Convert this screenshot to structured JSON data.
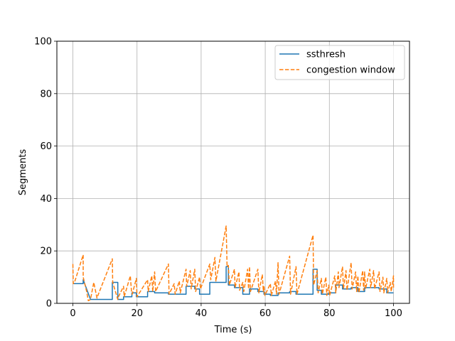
{
  "chart_data": {
    "type": "line",
    "xlabel": "Time (s)",
    "ylabel": "Segments",
    "xlim": [
      -5,
      105
    ],
    "ylim": [
      0,
      100
    ],
    "xticks": [
      0,
      20,
      40,
      60,
      80,
      100
    ],
    "yticks": [
      0,
      20,
      40,
      60,
      80,
      100
    ],
    "grid": true,
    "legend_position": "top-right",
    "series": [
      {
        "name": "ssthresh",
        "color": "#1f77b4",
        "style": "solid",
        "x": [
          0,
          3.2,
          3.2,
          5.5,
          12.3,
          12.3,
          14.0,
          14.0,
          15.8,
          15.8,
          18.4,
          18.4,
          19.8,
          19.8,
          23.3,
          23.3,
          25.5,
          25.5,
          29.8,
          29.8,
          35.3,
          35.3,
          38.0,
          38.0,
          39.5,
          39.5,
          42.7,
          42.7,
          47.8,
          47.8,
          48.5,
          48.5,
          50.4,
          50.4,
          53.0,
          53.0,
          55.1,
          55.1,
          57.7,
          57.7,
          59.6,
          59.6,
          61.6,
          61.6,
          64.0,
          64.0,
          67.6,
          67.6,
          69.6,
          69.6,
          74.9,
          74.9,
          76.2,
          76.2,
          77.5,
          77.5,
          79.8,
          79.8,
          82.0,
          82.0,
          84.1,
          84.1,
          86.8,
          86.8,
          88.9,
          88.9,
          91.0,
          91.0,
          95.5,
          95.5,
          97.9,
          97.9,
          100
        ],
        "y": [
          7.5,
          7.5,
          9.0,
          1.5,
          1.5,
          8.0,
          8.0,
          1.5,
          1.5,
          2.5,
          2.5,
          4.0,
          4.0,
          2.5,
          2.5,
          4.5,
          4.5,
          4.0,
          4.0,
          3.5,
          3.5,
          6.5,
          6.5,
          5.5,
          5.5,
          3.5,
          3.5,
          8.0,
          8.0,
          14.0,
          14.0,
          7.0,
          7.0,
          6.0,
          6.0,
          3.5,
          3.5,
          5.5,
          5.5,
          4.5,
          4.5,
          3.5,
          3.5,
          3.0,
          3.0,
          4.0,
          4.0,
          4.5,
          4.5,
          3.5,
          3.5,
          13.0,
          13.0,
          5.0,
          5.0,
          3.5,
          3.5,
          4.0,
          4.0,
          7.0,
          7.0,
          5.5,
          5.5,
          6.0,
          6.0,
          4.5,
          4.5,
          6.0,
          6.0,
          5.5,
          5.5,
          4.0,
          4.0
        ]
      },
      {
        "name": "congestion window",
        "color": "#ff7f0e",
        "style": "dashed",
        "x": [
          0,
          0.1,
          0.5,
          3.2,
          3.2,
          4.3,
          4.8,
          5.5,
          6.5,
          7.5,
          7.8,
          12.3,
          12.4,
          14.0,
          14.2,
          15.8,
          16.0,
          17.9,
          18.3,
          18.5,
          19.8,
          20.0,
          23.3,
          23.5,
          24.6,
          24.9,
          25.5,
          25.8,
          29.8,
          30.0,
          31.6,
          31.9,
          33.2,
          33.5,
          35.3,
          35.5,
          36.6,
          36.9,
          38.0,
          38.3,
          39.5,
          39.8,
          42.7,
          43.0,
          44.3,
          44.6,
          47.8,
          48.1,
          48.5,
          48.8,
          50.4,
          50.6,
          51.8,
          52.0,
          53.0,
          53.3,
          54.5,
          54.8,
          55.1,
          55.4,
          57.7,
          58.0,
          59.1,
          59.4,
          59.6,
          59.9,
          61.6,
          61.9,
          63.2,
          63.5,
          64.0,
          64.3,
          67.6,
          67.9,
          69.6,
          69.9,
          74.9,
          75.1,
          76.2,
          76.5,
          77.5,
          77.8,
          78.9,
          79.2,
          79.8,
          80.1,
          81.7,
          82.0,
          82.8,
          83.0,
          84.1,
          84.4,
          85.2,
          85.5,
          86.8,
          87.1,
          88.2,
          88.5,
          88.9,
          89.2,
          90.4,
          90.7,
          91.0,
          91.3,
          92.6,
          92.9,
          93.8,
          94.1,
          95.5,
          95.8,
          96.7,
          97.0,
          97.9,
          98.2,
          99.0,
          99.3,
          100,
          100
        ],
        "y": [
          15.0,
          7.5,
          8.0,
          18.5,
          10.0,
          4.5,
          1.0,
          1.5,
          8.0,
          2.0,
          3.0,
          17.0,
          8.0,
          1.5,
          2.5,
          6.5,
          2.5,
          10.5,
          4.0,
          3.5,
          9.5,
          2.5,
          9.0,
          4.5,
          10.5,
          4.5,
          12.0,
          4.5,
          15.0,
          3.5,
          7.5,
          3.5,
          8.5,
          4.0,
          13.0,
          6.5,
          12.5,
          5.5,
          13.0,
          4.5,
          10.0,
          5.5,
          15.0,
          9.0,
          17.5,
          8.5,
          29.5,
          14.0,
          14.5,
          7.0,
          13.0,
          6.0,
          12.0,
          5.0,
          8.0,
          4.5,
          13.0,
          5.5,
          14.0,
          4.5,
          13.0,
          4.0,
          11.0,
          4.5,
          6.5,
          3.0,
          7.5,
          3.0,
          8.5,
          3.5,
          15.5,
          3.5,
          18.0,
          3.5,
          14.0,
          3.5,
          26.0,
          7.0,
          12.5,
          4.0,
          9.5,
          3.5,
          10.0,
          3.0,
          7.0,
          3.0,
          10.5,
          4.0,
          12.0,
          6.0,
          14.0,
          5.5,
          12.5,
          5.0,
          15.5,
          5.5,
          12.0,
          4.5,
          10.5,
          4.0,
          12.5,
          5.0,
          12.0,
          5.5,
          13.0,
          6.0,
          12.5,
          5.5,
          12.0,
          4.5,
          10.0,
          4.0,
          9.5,
          4.0,
          8.0,
          4.5,
          10.5,
          5.5
        ]
      }
    ]
  }
}
